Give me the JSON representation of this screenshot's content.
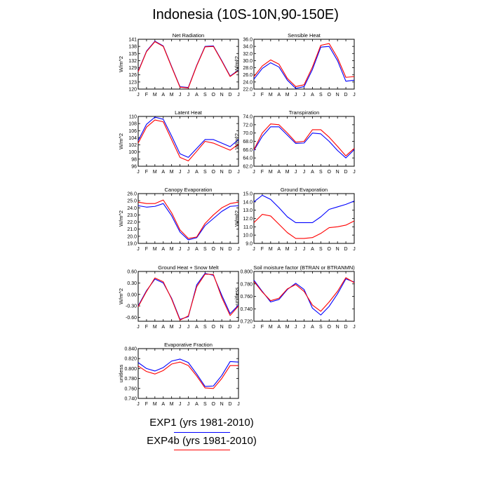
{
  "title": "Indonesia (10S-10N,90-150E)",
  "months": [
    "J",
    "F",
    "M",
    "A",
    "M",
    "J",
    "J",
    "A",
    "S",
    "O",
    "N",
    "D",
    "J"
  ],
  "colors": {
    "exp1": "#0000ff",
    "exp4b": "#ff0000",
    "axis": "#000000"
  },
  "legend": [
    {
      "label": "EXP1 (yrs 1981-2010)",
      "color": "#0000ff"
    },
    {
      "label": "EXP4b (yrs 1981-2010)",
      "color": "#ff0000"
    }
  ],
  "chart_data": [
    {
      "id": "net-radiation",
      "type": "line",
      "title": "Net Radiation",
      "ylabel": "W/m^2",
      "ylim": [
        120,
        141
      ],
      "yticks": [
        "120",
        "123",
        "126",
        "129",
        "132",
        "135",
        "138",
        "141"
      ],
      "series": [
        {
          "name": "EXP1 (yrs 1981-2010)",
          "values": [
            127.5,
            136,
            140.2,
            138.2,
            129.5,
            121,
            120.7,
            130,
            138,
            138.2,
            132,
            125.5,
            128
          ]
        },
        {
          "name": "EXP4b (yrs 1981-2010)",
          "values": [
            127.3,
            135.8,
            140,
            138,
            129.3,
            120.8,
            120.5,
            129.8,
            137.8,
            138,
            131.8,
            125.3,
            127.8
          ]
        }
      ]
    },
    {
      "id": "sensible-heat",
      "type": "line",
      "title": "Sensible Heat",
      "ylabel": "W/m^2",
      "ylim": [
        22,
        36
      ],
      "yticks": [
        "22.0",
        "24.0",
        "26.0",
        "28.0",
        "30.0",
        "32.0",
        "34.0",
        "36.0"
      ],
      "series": [
        {
          "name": "EXP1 (yrs 1981-2010)",
          "values": [
            24.8,
            27.8,
            29.4,
            28.2,
            24.5,
            22.2,
            22.7,
            27.5,
            33.8,
            34,
            30,
            24.2,
            24.5
          ]
        },
        {
          "name": "EXP4b (yrs 1981-2010)",
          "values": [
            25.5,
            28.5,
            30.2,
            29,
            25,
            22.7,
            23.2,
            28.2,
            34.3,
            34.8,
            30.8,
            25.3,
            25.5
          ]
        }
      ]
    },
    {
      "id": "latent-heat",
      "type": "line",
      "title": "Latent Heat",
      "ylabel": "W/m^2",
      "ylim": [
        96,
        110
      ],
      "yticks": [
        "96",
        "98",
        "100",
        "102",
        "104",
        "106",
        "108",
        "110"
      ],
      "series": [
        {
          "name": "EXP1 (yrs 1981-2010)",
          "values": [
            103.2,
            107.8,
            109.8,
            109.2,
            104.5,
            99.5,
            98.5,
            101,
            103.5,
            103.5,
            102.5,
            101.5,
            103.5
          ]
        },
        {
          "name": "EXP4b (yrs 1981-2010)",
          "values": [
            102.5,
            107,
            109,
            108.5,
            103.5,
            98.5,
            97.5,
            100.2,
            103,
            102.5,
            101.5,
            100.5,
            102.2
          ]
        }
      ]
    },
    {
      "id": "transpiration",
      "type": "line",
      "title": "Transpiration",
      "ylabel": "W/m^2",
      "ylim": [
        62,
        74
      ],
      "yticks": [
        "62.0",
        "64.0",
        "66.0",
        "68.0",
        "70.0",
        "72.0",
        "74.0"
      ],
      "series": [
        {
          "name": "EXP1 (yrs 1981-2010)",
          "values": [
            65.8,
            69.2,
            71.5,
            71.5,
            69.5,
            67.5,
            67.6,
            70,
            69.8,
            68,
            65.8,
            64,
            66
          ]
        },
        {
          "name": "EXP4b (yrs 1981-2010)",
          "values": [
            66,
            70,
            72.2,
            72,
            70,
            67.8,
            68,
            70.8,
            70.8,
            69,
            66.8,
            64.5,
            66.3
          ]
        }
      ]
    },
    {
      "id": "canopy-evaporation",
      "type": "line",
      "title": "Canopy Evaporation",
      "ylabel": "W/m^2",
      "ylim": [
        19,
        26
      ],
      "yticks": [
        "19.0",
        "20.0",
        "21.0",
        "22.0",
        "23.0",
        "24.0",
        "25.0",
        "26.0"
      ],
      "series": [
        {
          "name": "EXP1 (yrs 1981-2010)",
          "values": [
            24.3,
            24.1,
            24.2,
            24.6,
            22.9,
            20.6,
            19.5,
            19.8,
            21.5,
            22.5,
            23.5,
            24.2,
            24.3
          ]
        },
        {
          "name": "EXP4b (yrs 1981-2010)",
          "values": [
            24.8,
            24.6,
            24.6,
            25.1,
            23.3,
            20.9,
            19.7,
            19.9,
            21.8,
            23,
            24,
            24.6,
            24.8
          ]
        }
      ]
    },
    {
      "id": "ground-evaporation",
      "type": "line",
      "title": "Ground Evaporation",
      "ylabel": "W/m^2",
      "ylim": [
        9,
        15
      ],
      "yticks": [
        "9.0",
        "10.0",
        "11.0",
        "12.0",
        "13.0",
        "14.0",
        "15.0"
      ],
      "series": [
        {
          "name": "EXP1 (yrs 1981-2010)",
          "values": [
            14,
            14.8,
            14.3,
            13.3,
            12.2,
            11.5,
            11.5,
            11.5,
            12.2,
            13.1,
            13.4,
            13.7,
            14.1
          ]
        },
        {
          "name": "EXP4b (yrs 1981-2010)",
          "values": [
            11.5,
            12.5,
            12.3,
            11.3,
            10.3,
            9.6,
            9.6,
            9.7,
            10.2,
            10.9,
            11,
            11.2,
            11.7
          ]
        }
      ]
    },
    {
      "id": "ground-heat-snow-melt",
      "type": "line",
      "title": "Ground Heat + Snow Melt",
      "ylabel": "W/m^2",
      "ylim": [
        -0.7,
        0.6
      ],
      "yticks": [
        "-0.60",
        "-0.30",
        "0.00",
        "0.30",
        "0.60"
      ],
      "ytick_values": [
        -0.6,
        -0.3,
        0,
        0.3,
        0.6
      ],
      "series": [
        {
          "name": "EXP1 (yrs 1981-2010)",
          "values": [
            -0.3,
            0.1,
            0.4,
            0.3,
            -0.1,
            -0.65,
            -0.58,
            0.25,
            0.55,
            0.5,
            -0.02,
            -0.5,
            -0.28
          ]
        },
        {
          "name": "EXP4b (yrs 1981-2010)",
          "values": [
            -0.32,
            0.08,
            0.43,
            0.33,
            -0.12,
            -0.67,
            -0.56,
            0.2,
            0.53,
            0.52,
            -0.08,
            -0.55,
            -0.3
          ]
        }
      ]
    },
    {
      "id": "soil-moisture-factor",
      "type": "line",
      "title": "Soil moisture factor (BTRAN or BTRANMN)",
      "ylabel": "unitless",
      "ylim": [
        0.72,
        0.8
      ],
      "yticks": [
        "0.720",
        "0.740",
        "0.760",
        "0.780",
        "0.800"
      ],
      "series": [
        {
          "name": "EXP1 (yrs 1981-2010)",
          "values": [
            0.786,
            0.768,
            0.751,
            0.755,
            0.771,
            0.781,
            0.771,
            0.741,
            0.73,
            0.744,
            0.764,
            0.788,
            0.783
          ]
        },
        {
          "name": "EXP4b (yrs 1981-2010)",
          "values": [
            0.784,
            0.767,
            0.753,
            0.757,
            0.772,
            0.779,
            0.768,
            0.746,
            0.736,
            0.751,
            0.768,
            0.79,
            0.782
          ]
        }
      ]
    },
    {
      "id": "evaporative-fraction",
      "type": "line",
      "title": "Evaporative Fraction",
      "ylabel": "unitless",
      "ylim": [
        0.74,
        0.84
      ],
      "yticks": [
        "0.740",
        "0.760",
        "0.780",
        "0.800",
        "0.820",
        "0.840"
      ],
      "series": [
        {
          "name": "EXP1 (yrs 1981-2010)",
          "values": [
            0.812,
            0.8,
            0.795,
            0.802,
            0.815,
            0.819,
            0.812,
            0.789,
            0.764,
            0.765,
            0.786,
            0.814,
            0.813
          ]
        },
        {
          "name": "EXP4b (yrs 1981-2010)",
          "values": [
            0.805,
            0.794,
            0.789,
            0.796,
            0.809,
            0.813,
            0.806,
            0.785,
            0.761,
            0.76,
            0.78,
            0.806,
            0.806
          ]
        }
      ]
    }
  ]
}
